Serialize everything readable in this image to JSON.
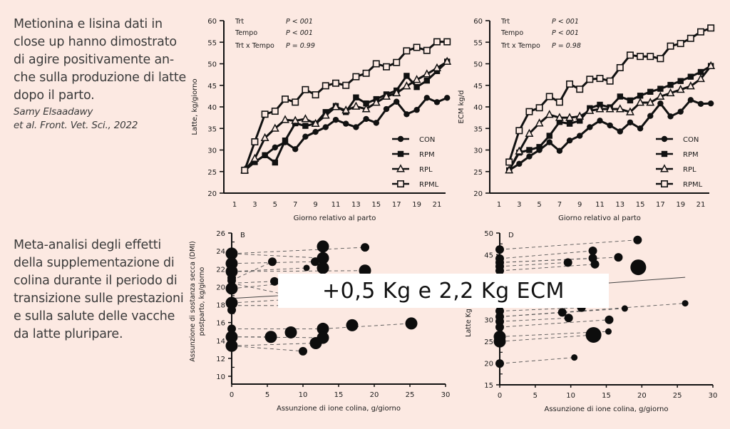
{
  "intro_top": {
    "text": "Metionina e lisina dati in close up hanno dimostrato di agire positivamente an-che sulla produzione di latte dopo il parto.",
    "citation_line1": "Samy Elsaadawy",
    "citation_line2": "et al. Front. Vet. Sci., 2022"
  },
  "intro_bottom": {
    "text": "Meta-analisi degli effetti della supplementazione di colina durante il periodo di transizione sulle prestazioni e sulla salute delle vacche da latte pluripare."
  },
  "overlay": {
    "text": "+0,5 Kg e 2,2 Kg ECM"
  },
  "chart_data": [
    {
      "id": "milk",
      "type": "line",
      "title": "",
      "xlabel": "Giorno relativo al parto",
      "ylabel": "Latte, kg/giorno",
      "xlim": [
        1,
        22.5
      ],
      "ylim": [
        20,
        60
      ],
      "xticks": [
        1,
        3,
        5,
        7,
        9,
        11,
        13,
        15,
        17,
        19,
        21
      ],
      "yticks": [
        20,
        25,
        30,
        35,
        40,
        45,
        50,
        55,
        60
      ],
      "stats": [
        {
          "label": "Trt",
          "value": "P < 001"
        },
        {
          "label": "Tempo",
          "value": "P < 001"
        },
        {
          "label": "Trt x Tempo",
          "value": "P = 0.99"
        }
      ],
      "legend_position": "bottom-right",
      "x": [
        2,
        3,
        4,
        5,
        6,
        7,
        8,
        9,
        10,
        11,
        12,
        13,
        14,
        15,
        16,
        17,
        18,
        19,
        20,
        21,
        22
      ],
      "series": [
        {
          "name": "CON",
          "marker": "circle-filled",
          "values": [
            25.3,
            27.2,
            28.8,
            30.6,
            31.8,
            30.2,
            33.1,
            34.2,
            35.3,
            37.0,
            36.1,
            35.3,
            37.2,
            36.3,
            39.5,
            41.2,
            38.3,
            39.3,
            42.1,
            41.1,
            42.1
          ]
        },
        {
          "name": "RPM",
          "marker": "square-filled",
          "values": [
            25.3,
            27.2,
            28.8,
            27.1,
            32.2,
            36.2,
            35.6,
            36.1,
            38.8,
            40.2,
            38.8,
            42.2,
            40.8,
            41.8,
            42.9,
            43.8,
            47.2,
            44.6,
            46.1,
            48.3,
            50.5
          ]
        },
        {
          "name": "RPL",
          "marker": "triangle-open",
          "values": [
            25.3,
            28.0,
            32.8,
            35.0,
            37.0,
            36.8,
            37.2,
            36.1,
            38.0,
            40.0,
            39.2,
            40.1,
            39.5,
            41.0,
            42.4,
            43.2,
            44.8,
            46.3,
            47.6,
            49.0,
            50.5
          ]
        },
        {
          "name": "RPML",
          "marker": "square-open",
          "values": [
            25.3,
            31.9,
            38.3,
            39.0,
            41.8,
            41.1,
            44.0,
            42.8,
            44.9,
            45.5,
            45.0,
            47.0,
            47.8,
            50.0,
            49.3,
            50.3,
            53.0,
            53.8,
            53.1,
            55.1,
            55.1
          ]
        }
      ]
    },
    {
      "id": "ecm",
      "type": "line",
      "title": "",
      "xlabel": "Giorno relativo al parto",
      "ylabel": "ECM kg/d",
      "xlim": [
        1,
        22.5
      ],
      "ylim": [
        20,
        60
      ],
      "xticks": [
        1,
        3,
        5,
        7,
        9,
        11,
        13,
        15,
        17,
        19,
        21
      ],
      "yticks": [
        20,
        25,
        30,
        35,
        40,
        45,
        50,
        55,
        60
      ],
      "stats": [
        {
          "label": "Trt",
          "value": "P < 001"
        },
        {
          "label": "Tempo",
          "value": "P < 001"
        },
        {
          "label": "Trt x Tempo",
          "value": "P = 0.98"
        }
      ],
      "legend_position": "bottom-right",
      "x": [
        2,
        3,
        4,
        5,
        6,
        7,
        8,
        9,
        10,
        11,
        12,
        13,
        14,
        15,
        16,
        17,
        18,
        19,
        20,
        21,
        22
      ],
      "series": [
        {
          "name": "CON",
          "marker": "circle-filled",
          "values": [
            25.3,
            26.8,
            28.5,
            30.0,
            31.8,
            29.8,
            32.2,
            33.3,
            35.3,
            36.8,
            35.7,
            34.3,
            36.4,
            35.0,
            37.9,
            40.8,
            37.8,
            38.9,
            41.6,
            40.7,
            40.8
          ]
        },
        {
          "name": "RPM",
          "marker": "square-filled",
          "values": [
            25.3,
            29.4,
            30.0,
            30.7,
            33.3,
            36.5,
            36.1,
            36.8,
            39.7,
            40.5,
            39.9,
            42.4,
            41.5,
            42.6,
            43.5,
            44.2,
            45.1,
            46.0,
            47.0,
            48.1,
            49.5
          ]
        },
        {
          "name": "RPL",
          "marker": "triangle-open",
          "values": [
            25.3,
            29.7,
            33.8,
            36.2,
            38.2,
            37.5,
            37.5,
            37.8,
            39.1,
            39.5,
            39.5,
            39.5,
            38.8,
            41.0,
            41.0,
            42.4,
            43.2,
            44.0,
            44.8,
            46.5,
            49.5
          ]
        },
        {
          "name": "RPML",
          "marker": "square-open",
          "values": [
            27.2,
            34.5,
            38.9,
            39.8,
            42.4,
            41.1,
            45.3,
            44.1,
            46.4,
            46.6,
            46.0,
            49.1,
            52.0,
            51.7,
            51.7,
            51.2,
            54.1,
            54.7,
            55.9,
            57.4,
            58.3
          ]
        }
      ]
    },
    {
      "id": "dmi",
      "type": "scatter",
      "panel_label": "B",
      "title": "",
      "xlabel": "Assunzione di ione colina, g/giorno",
      "ylabel": "Assunzione di sostanza secca (DMI) postparto, kg/giorno",
      "xlim": [
        0,
        30
      ],
      "ylim": [
        9.1,
        26
      ],
      "xticks": [
        0,
        5,
        10,
        15,
        20,
        25,
        30
      ],
      "yticks": [
        10,
        12,
        14,
        16,
        18,
        20,
        22,
        24,
        26
      ],
      "points": [
        {
          "x": 0,
          "y": 23.7,
          "size": 3
        },
        {
          "x": 0,
          "y": 22.6,
          "size": 3
        },
        {
          "x": 0,
          "y": 21.7,
          "size": 3
        },
        {
          "x": 0,
          "y": 21.0,
          "size": 2
        },
        {
          "x": 0,
          "y": 20.7,
          "size": 2
        },
        {
          "x": 0,
          "y": 19.8,
          "size": 3
        },
        {
          "x": 0,
          "y": 18.2,
          "size": 3
        },
        {
          "x": 0,
          "y": 17.4,
          "size": 2
        },
        {
          "x": 0,
          "y": 15.3,
          "size": 2
        },
        {
          "x": 0,
          "y": 14.4,
          "size": 3
        },
        {
          "x": 0,
          "y": 13.4,
          "size": 3
        },
        {
          "x": 5.7,
          "y": 22.8,
          "size": 2
        },
        {
          "x": 6.0,
          "y": 20.6,
          "size": 2
        },
        {
          "x": 5.5,
          "y": 14.4,
          "size": 3
        },
        {
          "x": 8.3,
          "y": 14.9,
          "size": 3
        },
        {
          "x": 10.0,
          "y": 12.8,
          "size": 2
        },
        {
          "x": 10.5,
          "y": 22.1,
          "size": 1
        },
        {
          "x": 11.7,
          "y": 22.8,
          "size": 2
        },
        {
          "x": 11.8,
          "y": 13.7,
          "size": 3
        },
        {
          "x": 12.8,
          "y": 24.5,
          "size": 3
        },
        {
          "x": 12.8,
          "y": 23.2,
          "size": 3
        },
        {
          "x": 12.8,
          "y": 22.1,
          "size": 3
        },
        {
          "x": 12.8,
          "y": 15.3,
          "size": 3
        },
        {
          "x": 12.8,
          "y": 14.3,
          "size": 3
        },
        {
          "x": 16.9,
          "y": 15.7,
          "size": 3
        },
        {
          "x": 18.7,
          "y": 24.4,
          "size": 2
        },
        {
          "x": 18.7,
          "y": 21.8,
          "size": 3
        },
        {
          "x": 25.2,
          "y": 15.9,
          "size": 3
        }
      ],
      "study_links": [
        [
          [
            0,
            23.7
          ],
          [
            18.7,
            24.4
          ]
        ],
        [
          [
            0,
            23.7
          ],
          [
            12.8,
            23.2
          ]
        ],
        [
          [
            0,
            22.6
          ],
          [
            11.7,
            22.8
          ]
        ],
        [
          [
            0,
            21.7
          ],
          [
            10.5,
            22.1
          ]
        ],
        [
          [
            0,
            21.7
          ],
          [
            18.7,
            21.8
          ]
        ],
        [
          [
            0,
            20.7
          ],
          [
            5.7,
            22.8
          ]
        ],
        [
          [
            0,
            20.4
          ],
          [
            6.0,
            20.6
          ]
        ],
        [
          [
            0,
            19.8
          ],
          [
            6.5,
            20.3
          ]
        ],
        [
          [
            0,
            20.4
          ],
          [
            6.5,
            19.3
          ]
        ],
        [
          [
            0,
            18.2
          ],
          [
            6.5,
            18.5
          ]
        ],
        [
          [
            0,
            17.9
          ],
          [
            6.5,
            17.9
          ]
        ],
        [
          [
            0,
            15.3
          ],
          [
            12.8,
            15.3
          ]
        ],
        [
          [
            0,
            14.4
          ],
          [
            5.5,
            14.4
          ]
        ],
        [
          [
            0,
            14.4
          ],
          [
            12.8,
            14.3
          ]
        ],
        [
          [
            0,
            13.4
          ],
          [
            10.0,
            12.8
          ]
        ],
        [
          [
            0,
            13.4
          ],
          [
            11.8,
            13.7
          ]
        ],
        [
          [
            12.8,
            15.3
          ],
          [
            25.2,
            15.9
          ]
        ]
      ],
      "trend_line": [
        [
          0,
          18.7
        ],
        [
          6.5,
          19.0
        ]
      ]
    },
    {
      "id": "ecm-meta",
      "type": "scatter",
      "panel_label": "D",
      "title": "",
      "xlabel": "Assunzione di ione colina, g/giorno",
      "ylabel": "Latte Kg ... ECM gg",
      "xlim": [
        0,
        30
      ],
      "ylim": [
        15,
        50
      ],
      "xticks": [
        0,
        5,
        10,
        15,
        20,
        25,
        30
      ],
      "yticks": [
        15,
        20,
        25,
        30,
        35,
        40,
        45,
        50
      ],
      "points": [
        {
          "x": 0,
          "y": 46.2,
          "size": 2
        },
        {
          "x": 0,
          "y": 44.1,
          "size": 2
        },
        {
          "x": 0,
          "y": 43.2,
          "size": 2
        },
        {
          "x": 0,
          "y": 42.3,
          "size": 2
        },
        {
          "x": 0,
          "y": 41.3,
          "size": 2
        },
        {
          "x": 0,
          "y": 32.0,
          "size": 2
        },
        {
          "x": 0,
          "y": 30.7,
          "size": 2
        },
        {
          "x": 0,
          "y": 29.6,
          "size": 2
        },
        {
          "x": 0,
          "y": 28.3,
          "size": 2
        },
        {
          "x": 0,
          "y": 26.1,
          "size": 3
        },
        {
          "x": 0,
          "y": 25.0,
          "size": 3
        },
        {
          "x": 0,
          "y": 19.9,
          "size": 2
        },
        {
          "x": 8.8,
          "y": 31.7,
          "size": 2
        },
        {
          "x": 9.6,
          "y": 43.2,
          "size": 2
        },
        {
          "x": 9.7,
          "y": 30.4,
          "size": 2
        },
        {
          "x": 10.5,
          "y": 21.3,
          "size": 1
        },
        {
          "x": 11.5,
          "y": 32.8,
          "size": 2
        },
        {
          "x": 13.1,
          "y": 45.9,
          "size": 2
        },
        {
          "x": 13.1,
          "y": 44.2,
          "size": 2
        },
        {
          "x": 13.4,
          "y": 42.8,
          "size": 2
        },
        {
          "x": 13.2,
          "y": 26.5,
          "size": 4
        },
        {
          "x": 15.3,
          "y": 27.3,
          "size": 1
        },
        {
          "x": 15.4,
          "y": 30.0,
          "size": 2
        },
        {
          "x": 16.7,
          "y": 44.4,
          "size": 2
        },
        {
          "x": 17.6,
          "y": 32.6,
          "size": 1
        },
        {
          "x": 19.4,
          "y": 48.4,
          "size": 2
        },
        {
          "x": 19.5,
          "y": 42.1,
          "size": 4
        },
        {
          "x": 26.1,
          "y": 33.8,
          "size": 1
        }
      ],
      "study_links": [
        [
          [
            0,
            46.2
          ],
          [
            19.4,
            48.4
          ]
        ],
        [
          [
            0,
            44.1
          ],
          [
            13.1,
            45.9
          ]
        ],
        [
          [
            0,
            43.2
          ],
          [
            13.1,
            44.2
          ]
        ],
        [
          [
            0,
            43.2
          ],
          [
            16.7,
            44.4
          ]
        ],
        [
          [
            0,
            42.3
          ],
          [
            9.6,
            43.2
          ]
        ],
        [
          [
            0,
            41.3
          ],
          [
            13.4,
            42.8
          ]
        ],
        [
          [
            0,
            32.0
          ],
          [
            11.5,
            32.8
          ]
        ],
        [
          [
            0,
            30.7
          ],
          [
            17.6,
            32.6
          ]
        ],
        [
          [
            0,
            30.7
          ],
          [
            26.1,
            33.8
          ]
        ],
        [
          [
            0,
            29.6
          ],
          [
            9.7,
            30.4
          ]
        ],
        [
          [
            0,
            28.3
          ],
          [
            15.4,
            30.0
          ]
        ],
        [
          [
            0,
            26.1
          ],
          [
            15.3,
            27.3
          ]
        ],
        [
          [
            0,
            25.0
          ],
          [
            13.2,
            26.5
          ]
        ],
        [
          [
            0,
            19.9
          ],
          [
            10.5,
            21.3
          ]
        ]
      ],
      "trend_line": [
        [
          8,
          37.6
        ],
        [
          26.1,
          39.8
        ]
      ]
    }
  ]
}
